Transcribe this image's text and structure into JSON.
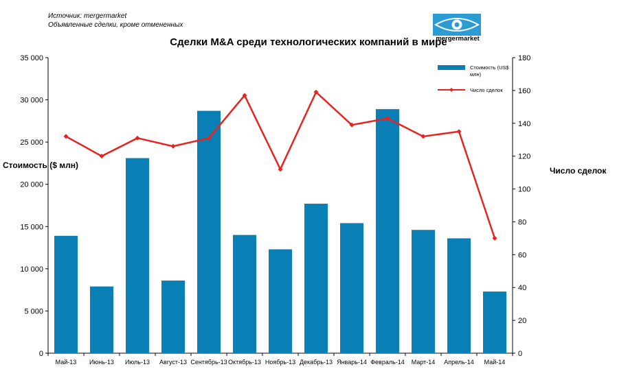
{
  "source_line": "Источник: mergermarket",
  "note_line": "Объявленные сделки, кроме отмененных",
  "logo": {
    "name": "mergermarket-logo-icon",
    "text": "mergermarket",
    "bg_color": "#2a9bd3"
  },
  "chart_data": {
    "type": "bar",
    "title": "Сделки M&A среди технологических компаний в мире",
    "ylabel": "Стоимость  ($ млн)",
    "y2label": "Число сделок",
    "categories": [
      "Май-13",
      "Июнь-13",
      "Июль-13",
      "Август-13",
      "Сентябрь-13",
      "Октябрь-13",
      "Ноябрь-13",
      "Декабрь-13",
      "Январь-14",
      "Февраль-14",
      "Март-14",
      "Апрель-14",
      "Май-14"
    ],
    "ylim": [
      0,
      35000
    ],
    "y2lim": [
      0,
      180
    ],
    "yticks": [
      "0",
      "5 000",
      "10 000",
      "15 000",
      "20 000",
      "25 000",
      "30 000",
      "35 000"
    ],
    "y2ticks": [
      "0",
      "20",
      "40",
      "60",
      "80",
      "100",
      "120",
      "140",
      "160",
      "180"
    ],
    "series": [
      {
        "name": "Стоимость  (US$ млн)",
        "type": "bar",
        "axis": "left",
        "color": "#0a7fb5",
        "values": [
          13900,
          7900,
          23100,
          8600,
          28700,
          14000,
          12300,
          17700,
          15400,
          28900,
          14600,
          13600,
          7300
        ]
      },
      {
        "name": "Число сделок",
        "type": "line",
        "axis": "right",
        "color": "#e8231f",
        "values": [
          132,
          120,
          131,
          126,
          131,
          157,
          112,
          159,
          139,
          143,
          132,
          135,
          70
        ]
      }
    ],
    "legend": "top-right",
    "grid": false
  }
}
